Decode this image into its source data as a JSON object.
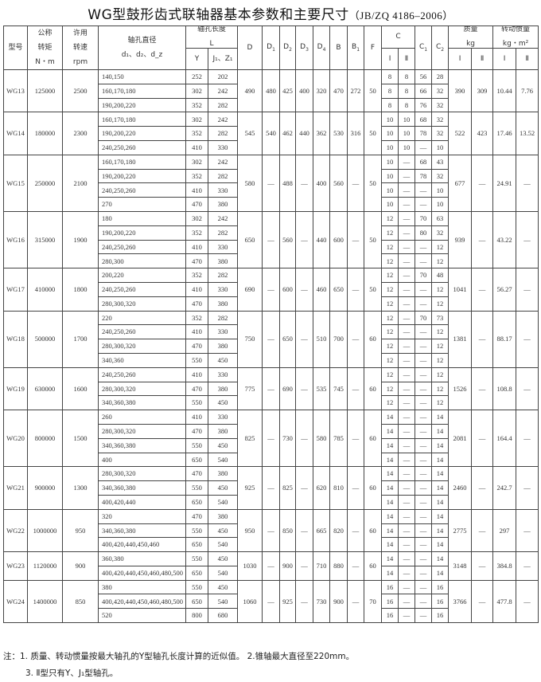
{
  "title": {
    "main": "WG型鼓形齿式联轴器基本参数和主要尺寸",
    "standard": "（JB/ZQ 4186–2006）"
  },
  "header": {
    "model": "型号",
    "torque": [
      "公称",
      "转矩",
      "N・m"
    ],
    "speed": [
      "许用",
      "转速",
      "rpm"
    ],
    "bore": {
      "label": "轴孔直径",
      "sub": "d₁、d₂、d_z"
    },
    "length": {
      "label": "轴孔长度",
      "unit": "L",
      "Y": "Y",
      "J": "J₁、Z₁"
    },
    "dims": [
      {
        "main": "D",
        "sub": ""
      },
      {
        "main": "D",
        "sub": "1"
      },
      {
        "main": "D",
        "sub": "2"
      },
      {
        "main": "D",
        "sub": "3"
      },
      {
        "main": "D",
        "sub": "4"
      },
      {
        "main": "B",
        "sub": ""
      },
      {
        "main": "B",
        "sub": "1"
      },
      {
        "main": "F",
        "sub": ""
      }
    ],
    "C": "C",
    "C1": {
      "main": "C",
      "sub": "1"
    },
    "C2": {
      "main": "C",
      "sub": "2"
    },
    "mass": [
      "质量",
      "kg"
    ],
    "inertia": [
      "转动惯量",
      "kg・m²"
    ],
    "type_I": "Ⅰ",
    "type_II": "Ⅱ"
  },
  "rows": [
    {
      "model": "WG13",
      "torque": "125000",
      "speed": "2500",
      "dims": [
        "490",
        "480",
        "425",
        "400",
        "320",
        "470",
        "272",
        "50"
      ],
      "mass": [
        "390",
        "309"
      ],
      "inertia": [
        "10.44",
        "7.76"
      ],
      "bores": [
        [
          "140,150",
          "252",
          "202",
          "8",
          "8",
          "56",
          "28"
        ],
        [
          "160,170,180",
          "302",
          "242",
          "8",
          "8",
          "66",
          "32"
        ],
        [
          "190,200,220",
          "352",
          "282",
          "8",
          "8",
          "76",
          "32"
        ]
      ]
    },
    {
      "model": "WG14",
      "torque": "180000",
      "speed": "2300",
      "dims": [
        "545",
        "540",
        "462",
        "440",
        "362",
        "530",
        "316",
        "50"
      ],
      "mass": [
        "522",
        "423"
      ],
      "inertia": [
        "17.46",
        "13.52"
      ],
      "bores": [
        [
          "160,170,180",
          "302",
          "242",
          "10",
          "10",
          "68",
          "32"
        ],
        [
          "190,200,220",
          "352",
          "282",
          "10",
          "10",
          "78",
          "32"
        ],
        [
          "240,250,260",
          "410",
          "330",
          "10",
          "10",
          "—",
          "10"
        ]
      ]
    },
    {
      "model": "WG15",
      "torque": "250000",
      "speed": "2100",
      "dims": [
        "580",
        "—",
        "488",
        "—",
        "400",
        "560",
        "—",
        "50"
      ],
      "mass": [
        "677",
        "—"
      ],
      "inertia": [
        "24.91",
        "—"
      ],
      "bores": [
        [
          "160,170,180",
          "302",
          "242",
          "10",
          "—",
          "68",
          "43"
        ],
        [
          "190,200,220",
          "352",
          "282",
          "10",
          "—",
          "78",
          "32"
        ],
        [
          "240,250,260",
          "410",
          "330",
          "10",
          "—",
          "—",
          "10"
        ],
        [
          "270",
          "470",
          "380",
          "10",
          "—",
          "—",
          "10"
        ]
      ]
    },
    {
      "model": "WG16",
      "torque": "315000",
      "speed": "1900",
      "dims": [
        "650",
        "—",
        "560",
        "—",
        "440",
        "600",
        "—",
        "50"
      ],
      "mass": [
        "939",
        "—"
      ],
      "inertia": [
        "43.22",
        "—"
      ],
      "bores": [
        [
          "180",
          "302",
          "242",
          "12",
          "—",
          "70",
          "63"
        ],
        [
          "190,200,220",
          "352",
          "282",
          "12",
          "—",
          "80",
          "32"
        ],
        [
          "240,250,260",
          "410",
          "330",
          "12",
          "—",
          "—",
          "12"
        ],
        [
          "280,300",
          "470",
          "380",
          "12",
          "—",
          "—",
          "12"
        ]
      ]
    },
    {
      "model": "WG17",
      "torque": "410000",
      "speed": "1800",
      "dims": [
        "690",
        "—",
        "600",
        "—",
        "460",
        "650",
        "—",
        "50"
      ],
      "mass": [
        "1041",
        "—"
      ],
      "inertia": [
        "56.27",
        "—"
      ],
      "bores": [
        [
          "200,220",
          "352",
          "282",
          "12",
          "—",
          "70",
          "48"
        ],
        [
          "240,250,260",
          "410",
          "330",
          "12",
          "—",
          "—",
          "12"
        ],
        [
          "280,300,320",
          "470",
          "380",
          "12",
          "—",
          "—",
          "12"
        ]
      ]
    },
    {
      "model": "WG18",
      "torque": "500000",
      "speed": "1700",
      "dims": [
        "750",
        "—",
        "650",
        "—",
        "510",
        "700",
        "—",
        "60"
      ],
      "mass": [
        "1381",
        "—"
      ],
      "inertia": [
        "88.17",
        "—"
      ],
      "bores": [
        [
          "220",
          "352",
          "282",
          "12",
          "—",
          "70",
          "73"
        ],
        [
          "240,250,260",
          "410",
          "330",
          "12",
          "—",
          "—",
          "12"
        ],
        [
          "280,300,320",
          "470",
          "380",
          "12",
          "—",
          "—",
          "12"
        ],
        [
          "340,360",
          "550",
          "450",
          "12",
          "—",
          "—",
          "12"
        ]
      ]
    },
    {
      "model": "WG19",
      "torque": "630000",
      "speed": "1600",
      "dims": [
        "775",
        "—",
        "690",
        "—",
        "535",
        "745",
        "—",
        "60"
      ],
      "mass": [
        "1526",
        "—"
      ],
      "inertia": [
        "108.8",
        "—"
      ],
      "bores": [
        [
          "240,250,260",
          "410",
          "330",
          "12",
          "—",
          "—",
          "12"
        ],
        [
          "280,300,320",
          "470",
          "380",
          "12",
          "—",
          "—",
          "12"
        ],
        [
          "340,360,380",
          "550",
          "450",
          "12",
          "—",
          "—",
          "12"
        ]
      ]
    },
    {
      "model": "WG20",
      "torque": "800000",
      "speed": "1500",
      "dims": [
        "825",
        "—",
        "730",
        "—",
        "580",
        "785",
        "—",
        "60"
      ],
      "mass": [
        "2081",
        "—"
      ],
      "inertia": [
        "164.4",
        "—"
      ],
      "bores": [
        [
          "260",
          "410",
          "330",
          "14",
          "—",
          "—",
          "14"
        ],
        [
          "280,300,320",
          "470",
          "380",
          "14",
          "—",
          "—",
          "14"
        ],
        [
          "340,360,380",
          "550",
          "450",
          "14",
          "—",
          "—",
          "14"
        ],
        [
          "400",
          "650",
          "540",
          "14",
          "—",
          "—",
          "14"
        ]
      ]
    },
    {
      "model": "WG21",
      "torque": "900000",
      "speed": "1300",
      "dims": [
        "925",
        "—",
        "825",
        "—",
        "620",
        "810",
        "—",
        "60"
      ],
      "mass": [
        "2460",
        "—"
      ],
      "inertia": [
        "242.7",
        "—"
      ],
      "bores": [
        [
          "280,300,320",
          "470",
          "380",
          "14",
          "—",
          "—",
          "14"
        ],
        [
          "340,360,380",
          "550",
          "450",
          "14",
          "—",
          "—",
          "14"
        ],
        [
          "400,420,440",
          "650",
          "540",
          "14",
          "—",
          "—",
          "14"
        ]
      ]
    },
    {
      "model": "WG22",
      "torque": "1000000",
      "speed": "950",
      "dims": [
        "950",
        "—",
        "850",
        "—",
        "665",
        "820",
        "—",
        "60"
      ],
      "mass": [
        "2775",
        "—"
      ],
      "inertia": [
        "297",
        "—"
      ],
      "bores": [
        [
          "320",
          "470",
          "380",
          "14",
          "—",
          "—",
          "14"
        ],
        [
          "340,360,380",
          "550",
          "450",
          "14",
          "—",
          "—",
          "14"
        ],
        [
          "400,420,440,450,460",
          "650",
          "540",
          "14",
          "—",
          "—",
          "14"
        ]
      ]
    },
    {
      "model": "WG23",
      "torque": "1120000",
      "speed": "900",
      "dims": [
        "1030",
        "—",
        "900",
        "—",
        "710",
        "880",
        "—",
        "60"
      ],
      "mass": [
        "3148",
        "—"
      ],
      "inertia": [
        "384.8",
        "—"
      ],
      "bores": [
        [
          "360,380",
          "550",
          "450",
          "14",
          "—",
          "—",
          "14"
        ],
        [
          "400,420,440,450,460,480,500",
          "650",
          "540",
          "14",
          "—",
          "—",
          "14"
        ]
      ]
    },
    {
      "model": "WG24",
      "torque": "1400000",
      "speed": "850",
      "dims": [
        "1060",
        "—",
        "925",
        "—",
        "730",
        "900",
        "—",
        "70"
      ],
      "mass": [
        "3766",
        "—"
      ],
      "inertia": [
        "477.8",
        "—"
      ],
      "bores": [
        [
          "380",
          "550",
          "450",
          "16",
          "—",
          "—",
          "16"
        ],
        [
          "400,420,440,450,460,480,500",
          "650",
          "540",
          "16",
          "—",
          "—",
          "16"
        ],
        [
          "520",
          "800",
          "680",
          "16",
          "—",
          "—",
          "16"
        ]
      ]
    }
  ],
  "notes": {
    "line1": "注：1. 质量、转动惯量按最大轴孔的Y型轴孔长度计算的近似值。  2.锥轴最大直径至220mm。",
    "line2": "3. Ⅱ型只有Y、J₁型轴孔。"
  }
}
